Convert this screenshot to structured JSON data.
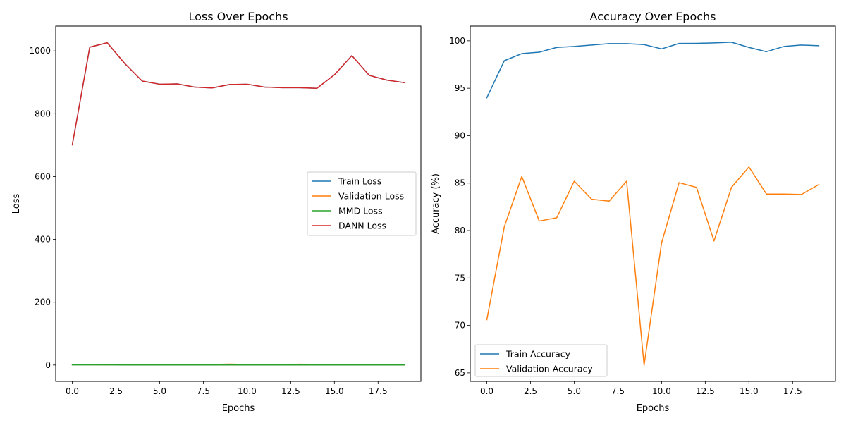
{
  "chart_data": [
    {
      "type": "line",
      "title": "Loss Over Epochs",
      "xlabel": "Epochs",
      "ylabel": "Loss",
      "xlim": [
        -0.95,
        19.95
      ],
      "ylim": [
        -52,
        1079
      ],
      "xticks": [
        0.0,
        2.5,
        5.0,
        7.5,
        10.0,
        12.5,
        15.0,
        17.5
      ],
      "xtick_labels": [
        "0.0",
        "2.5",
        "5.0",
        "7.5",
        "10.0",
        "12.5",
        "15.0",
        "17.5"
      ],
      "yticks": [
        0,
        200,
        400,
        600,
        800,
        1000
      ],
      "ytick_labels": [
        "0",
        "200",
        "400",
        "600",
        "800",
        "1000"
      ],
      "grid": false,
      "legend_position": "center-right",
      "x": [
        0,
        1,
        2,
        3,
        4,
        5,
        6,
        7,
        8,
        9,
        10,
        11,
        12,
        13,
        14,
        15,
        16,
        17,
        18,
        19
      ],
      "series": [
        {
          "name": "Train Loss",
          "color": "#1f77b4",
          "values": [
            701,
            1012,
            1026,
            960,
            904,
            894,
            895,
            885,
            882,
            893,
            894,
            885,
            883,
            883,
            881,
            924,
            985,
            922,
            907,
            899
          ]
        },
        {
          "name": "Validation Loss",
          "color": "#ff7f0e",
          "values": [
            1.8,
            1.2,
            0.6,
            2.1,
            1.6,
            1.1,
            1.6,
            1.3,
            1.9,
            3.0,
            1.8,
            1.4,
            1.8,
            2.6,
            2.2,
            0.9,
            1.5,
            1.3,
            1.4,
            1.2
          ]
        },
        {
          "name": "MMD Loss",
          "color": "#2ca02c",
          "values": [
            0.5,
            0.4,
            0.4,
            0.3,
            0.3,
            0.3,
            0.3,
            0.3,
            0.3,
            0.3,
            0.3,
            0.3,
            0.3,
            0.3,
            0.3,
            0.3,
            0.3,
            0.3,
            0.3,
            0.3
          ]
        },
        {
          "name": "DANN Loss",
          "color": "#d62728",
          "values": [
            701,
            1012,
            1026,
            960,
            904,
            894,
            895,
            885,
            882,
            893,
            894,
            885,
            883,
            883,
            881,
            924,
            985,
            922,
            907,
            899
          ]
        }
      ]
    },
    {
      "type": "line",
      "title": "Accuracy Over Epochs",
      "xlabel": "Epochs",
      "ylabel": "Accuracy (%)",
      "xlim": [
        -0.95,
        19.95
      ],
      "ylim": [
        64.1,
        101.55
      ],
      "xticks": [
        0.0,
        2.5,
        5.0,
        7.5,
        10.0,
        12.5,
        15.0,
        17.5
      ],
      "xtick_labels": [
        "0.0",
        "2.5",
        "5.0",
        "7.5",
        "10.0",
        "12.5",
        "15.0",
        "17.5"
      ],
      "yticks": [
        65,
        70,
        75,
        80,
        85,
        90,
        95,
        100
      ],
      "ytick_labels": [
        "65",
        "70",
        "75",
        "80",
        "85",
        "90",
        "95",
        "100"
      ],
      "grid": false,
      "legend_position": "lower-left",
      "x": [
        0,
        1,
        2,
        3,
        4,
        5,
        6,
        7,
        8,
        9,
        10,
        11,
        12,
        13,
        14,
        15,
        16,
        17,
        18,
        19
      ],
      "series": [
        {
          "name": "Train Accuracy",
          "color": "#1f77b4",
          "values": [
            94.0,
            97.9,
            98.65,
            98.8,
            99.3,
            99.4,
            99.55,
            99.7,
            99.7,
            99.6,
            99.15,
            99.72,
            99.73,
            99.78,
            99.85,
            99.3,
            98.85,
            99.4,
            99.55,
            99.48
          ]
        },
        {
          "name": "Validation Accuracy",
          "color": "#ff7f0e",
          "values": [
            70.6,
            80.4,
            85.7,
            81.0,
            81.35,
            85.2,
            83.3,
            83.1,
            85.2,
            65.8,
            78.7,
            85.05,
            84.55,
            78.9,
            84.55,
            86.7,
            83.85,
            83.85,
            83.8,
            84.85
          ]
        }
      ]
    }
  ]
}
